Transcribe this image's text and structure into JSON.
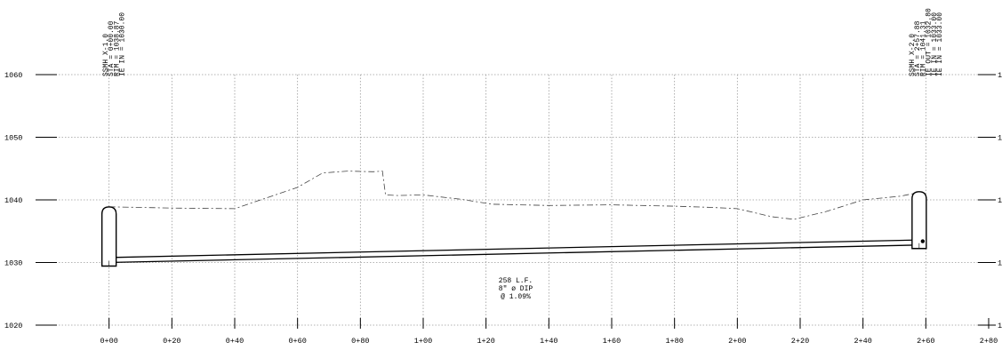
{
  "elevation_labels": [
    "1060",
    "1050",
    "1040",
    "1030",
    "1020"
  ],
  "right_elevation_labels": [
    "1",
    "1",
    "1",
    "1",
    "1"
  ],
  "station_labels": [
    "0+00",
    "0+20",
    "0+40",
    "0+60",
    "0+80",
    "1+00",
    "1+20",
    "1+40",
    "1+60",
    "1+80",
    "2+00",
    "2+20",
    "2+40",
    "2+60",
    "2+80"
  ],
  "manholes": [
    {
      "name": "SSMH X-1.0",
      "lines": [
        "SSMH X-1.0",
        "STA = 0+00.00",
        "RIM = 1038.87",
        "IE IN = 1030.00"
      ],
      "station_ft": 0.0,
      "rim_elev": 1038.87,
      "invert_elev": 1030.0
    },
    {
      "name": "SSMH X-2.0",
      "lines": [
        "SSMH X-2.0",
        "STA = 2+57.88",
        "RIM = 1041.31",
        "IE OUT = 1032.80",
        "IE IN = 1033.00",
        "IE IN = 1033.00"
      ],
      "station_ft": 257.88,
      "rim_elev": 1041.31,
      "invert_elev": 1032.8
    }
  ],
  "pipe_label": [
    "258 L.F.",
    "8\" ø DIP",
    "@ 1.09%"
  ],
  "chart_data": {
    "type": "line",
    "xlim": [
      -20,
      280
    ],
    "ylim": [
      1020,
      1060
    ],
    "x_tick_step": 20,
    "y_tick_step": 10,
    "grid": true,
    "series": [
      {
        "style": "dashed",
        "x": [
          0,
          20,
          40,
          60,
          68,
          76,
          84,
          87,
          88,
          92,
          100,
          112,
          122,
          140,
          160,
          180,
          192,
          200,
          211,
          218,
          228,
          240,
          252,
          257
        ],
        "y": [
          1038.9,
          1038.7,
          1038.6,
          1042,
          1044.3,
          1044.6,
          1044.5,
          1044.6,
          1040.8,
          1040.7,
          1040.8,
          1040.1,
          1039.3,
          1039.1,
          1039.2,
          1039,
          1038.8,
          1038.6,
          1037.3,
          1036.9,
          1038.1,
          1040,
          1040.6,
          1041.1
        ]
      },
      {
        "style": "solid",
        "x": [
          0,
          257.88
        ],
        "y": [
          1030.8,
          1033.6
        ]
      },
      {
        "style": "solid",
        "x": [
          0,
          257.88
        ],
        "y": [
          1030.0,
          1032.8
        ]
      }
    ]
  }
}
